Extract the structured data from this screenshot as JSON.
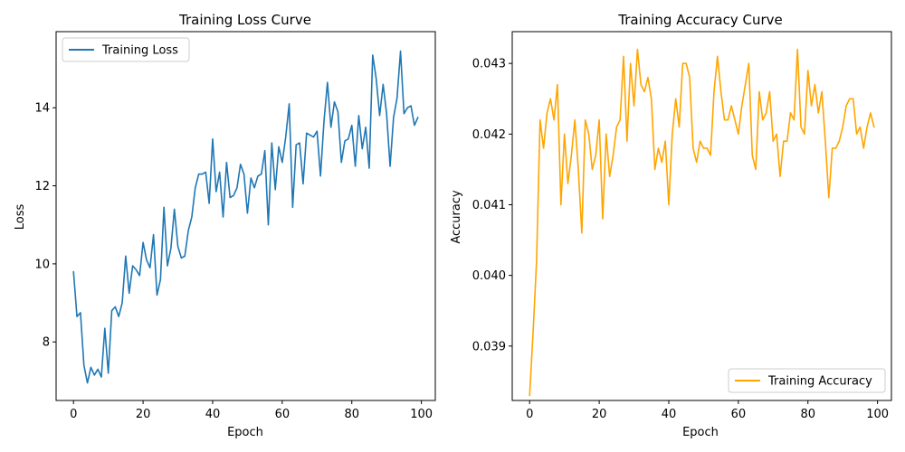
{
  "chart_data": [
    {
      "type": "line",
      "title": "Training Loss Curve",
      "xlabel": "Epoch",
      "ylabel": "Loss",
      "xlim": [
        -5,
        104
      ],
      "ylim": [
        6.5,
        15.95
      ],
      "xticks": [
        0,
        20,
        40,
        60,
        80,
        100
      ],
      "yticks": [
        8,
        10,
        12,
        14
      ],
      "ytick_labels": [
        "8",
        "10",
        "12",
        "14"
      ],
      "grid": false,
      "legend": "upper-left",
      "series": [
        {
          "name": "Training Loss",
          "color": "#1f77b4",
          "x": [
            0,
            1,
            2,
            3,
            4,
            5,
            6,
            7,
            8,
            9,
            10,
            11,
            12,
            13,
            14,
            15,
            16,
            17,
            18,
            19,
            20,
            21,
            22,
            23,
            24,
            25,
            26,
            27,
            28,
            29,
            30,
            31,
            32,
            33,
            34,
            35,
            36,
            37,
            38,
            39,
            40,
            41,
            42,
            43,
            44,
            45,
            46,
            47,
            48,
            49,
            50,
            51,
            52,
            53,
            54,
            55,
            56,
            57,
            58,
            59,
            60,
            61,
            62,
            63,
            64,
            65,
            66,
            67,
            68,
            69,
            70,
            71,
            72,
            73,
            74,
            75,
            76,
            77,
            78,
            79,
            80,
            81,
            82,
            83,
            84,
            85,
            86,
            87,
            88,
            89,
            90,
            91,
            92,
            93,
            94,
            95,
            96,
            97,
            98,
            99
          ],
          "values": [
            9.8,
            8.65,
            8.75,
            7.4,
            6.95,
            7.35,
            7.15,
            7.3,
            7.1,
            8.35,
            7.2,
            8.8,
            8.9,
            8.65,
            9.0,
            10.2,
            9.25,
            9.95,
            9.85,
            9.7,
            10.55,
            10.1,
            9.9,
            10.75,
            9.2,
            9.6,
            11.45,
            9.95,
            10.4,
            11.4,
            10.45,
            10.15,
            10.2,
            10.85,
            11.2,
            11.95,
            12.3,
            12.3,
            12.35,
            11.55,
            13.2,
            11.85,
            12.35,
            11.2,
            12.6,
            11.7,
            11.75,
            11.95,
            12.55,
            12.3,
            11.3,
            12.2,
            11.95,
            12.25,
            12.3,
            12.9,
            11.0,
            13.1,
            11.9,
            13.0,
            12.6,
            13.25,
            14.1,
            11.45,
            13.05,
            13.1,
            12.05,
            13.35,
            13.3,
            13.25,
            13.4,
            12.25,
            13.65,
            14.65,
            13.5,
            14.15,
            13.9,
            12.6,
            13.15,
            13.2,
            13.55,
            12.5,
            13.8,
            12.95,
            13.5,
            12.45,
            15.35,
            14.75,
            13.8,
            14.6,
            13.85,
            12.5,
            13.75,
            14.25,
            15.45,
            13.85,
            14.0,
            14.05,
            13.55,
            13.75
          ]
        }
      ]
    },
    {
      "type": "line",
      "title": "Training Accuracy Curve",
      "xlabel": "Epoch",
      "ylabel": "Accuracy",
      "xlim": [
        -5,
        104
      ],
      "ylim": [
        0.03823,
        0.04345
      ],
      "xticks": [
        0,
        20,
        40,
        60,
        80,
        100
      ],
      "yticks": [
        0.039,
        0.04,
        0.041,
        0.042,
        0.043
      ],
      "ytick_labels": [
        "0.039",
        "0.040",
        "0.041",
        "0.042",
        "0.043"
      ],
      "grid": false,
      "legend": "lower-right",
      "series": [
        {
          "name": "Training Accuracy",
          "color": "#ffa500",
          "x": [
            0,
            1,
            2,
            3,
            4,
            5,
            6,
            7,
            8,
            9,
            10,
            11,
            12,
            13,
            14,
            15,
            16,
            17,
            18,
            19,
            20,
            21,
            22,
            23,
            24,
            25,
            26,
            27,
            28,
            29,
            30,
            31,
            32,
            33,
            34,
            35,
            36,
            37,
            38,
            39,
            40,
            41,
            42,
            43,
            44,
            45,
            46,
            47,
            48,
            49,
            50,
            51,
            52,
            53,
            54,
            55,
            56,
            57,
            58,
            59,
            60,
            61,
            62,
            63,
            64,
            65,
            66,
            67,
            68,
            69,
            70,
            71,
            72,
            73,
            74,
            75,
            76,
            77,
            78,
            79,
            80,
            81,
            82,
            83,
            84,
            85,
            86,
            87,
            88,
            89,
            90,
            91,
            92,
            93,
            94,
            95,
            96,
            97,
            98,
            99
          ],
          "values": [
            0.0383,
            0.0392,
            0.0402,
            0.0422,
            0.0418,
            0.0423,
            0.0425,
            0.0422,
            0.0427,
            0.041,
            0.042,
            0.0413,
            0.0417,
            0.0422,
            0.0415,
            0.0406,
            0.0422,
            0.042,
            0.0415,
            0.0417,
            0.0422,
            0.0408,
            0.042,
            0.0414,
            0.0417,
            0.0421,
            0.0422,
            0.0431,
            0.0419,
            0.043,
            0.0424,
            0.0432,
            0.0427,
            0.0426,
            0.0428,
            0.0425,
            0.0415,
            0.0418,
            0.0416,
            0.0419,
            0.041,
            0.042,
            0.0425,
            0.0421,
            0.043,
            0.043,
            0.0428,
            0.0418,
            0.0416,
            0.0419,
            0.0418,
            0.0418,
            0.0417,
            0.0426,
            0.0431,
            0.0426,
            0.0422,
            0.0422,
            0.0424,
            0.0422,
            0.042,
            0.0424,
            0.0427,
            0.043,
            0.0417,
            0.0415,
            0.0426,
            0.0422,
            0.0423,
            0.0426,
            0.0419,
            0.042,
            0.0414,
            0.0419,
            0.0419,
            0.0423,
            0.0422,
            0.0432,
            0.0421,
            0.042,
            0.0429,
            0.0424,
            0.0427,
            0.0423,
            0.0426,
            0.0419,
            0.0411,
            0.0418,
            0.0418,
            0.0419,
            0.0421,
            0.0424,
            0.0425,
            0.0425,
            0.042,
            0.0421,
            0.0418,
            0.0421,
            0.0423,
            0.0421
          ]
        }
      ]
    }
  ]
}
